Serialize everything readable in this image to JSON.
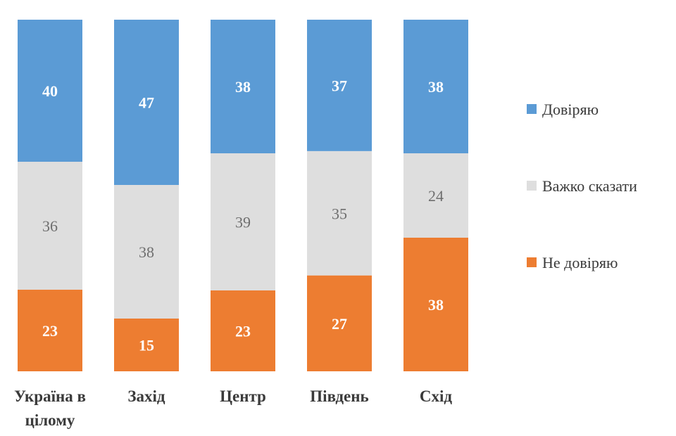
{
  "chart_data": {
    "type": "bar",
    "stacked": true,
    "normalized": true,
    "categories": [
      [
        "Україна в",
        "цілому"
      ],
      [
        "Захід"
      ],
      [
        "Центр"
      ],
      [
        "Південь"
      ],
      [
        "Схід"
      ]
    ],
    "series": [
      {
        "name": "Довіряю",
        "color": "#5b9bd5",
        "label_color": "#ffffff",
        "label_bold": true,
        "values": [
          40,
          47,
          38,
          37,
          38
        ]
      },
      {
        "name": "Важко сказати",
        "color": "#dedede",
        "label_color": "#6e6e6e",
        "label_bold": false,
        "values": [
          36,
          38,
          39,
          35,
          24
        ]
      },
      {
        "name": "Не довіряю",
        "color": "#ed7d31",
        "label_color": "#ffffff",
        "label_bold": true,
        "values": [
          23,
          15,
          23,
          27,
          38
        ]
      }
    ],
    "legend_position": "right",
    "grid": false
  }
}
